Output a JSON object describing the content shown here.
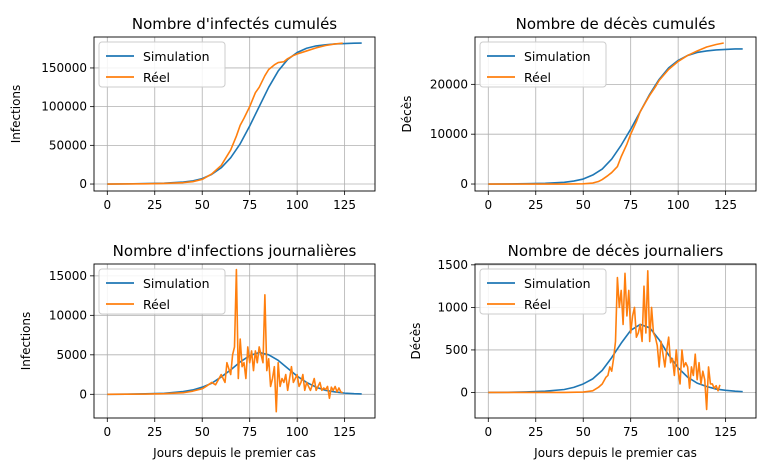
{
  "chart_data": [
    {
      "type": "line",
      "title": "Nombre d'infectés cumulés",
      "xlabel": "",
      "ylabel": "Infections",
      "xlim": [
        -7,
        141
      ],
      "ylim": [
        -9000,
        190000
      ],
      "xticks": [
        0,
        25,
        50,
        75,
        100,
        125
      ],
      "yticks": [
        0,
        50000,
        100000,
        150000
      ],
      "ytick_labels": [
        "0",
        "50000",
        "100000",
        "150000"
      ],
      "grid": true,
      "legend": "upper-left",
      "series": [
        {
          "name": "Simulation",
          "color": "#1f77b4",
          "x": [
            0,
            10,
            20,
            30,
            40,
            45,
            50,
            55,
            60,
            65,
            70,
            75,
            80,
            85,
            90,
            95,
            100,
            105,
            110,
            115,
            120,
            125,
            130,
            134
          ],
          "y": [
            0,
            200,
            600,
            1100,
            2500,
            4000,
            7000,
            12500,
            21000,
            34000,
            52000,
            75000,
            100000,
            125000,
            146000,
            161000,
            170000,
            175500,
            178500,
            180000,
            181000,
            181500,
            182000,
            182200
          ]
        },
        {
          "name": "Réel",
          "color": "#ff7f0e",
          "x": [
            0,
            10,
            20,
            30,
            40,
            45,
            50,
            55,
            60,
            65,
            68,
            70,
            72,
            75,
            78,
            80,
            83,
            85,
            88,
            90,
            93,
            95,
            98,
            100,
            105,
            110,
            115,
            120,
            124
          ],
          "y": [
            0,
            100,
            300,
            800,
            1800,
            3000,
            6000,
            13000,
            24000,
            44000,
            62000,
            76000,
            85000,
            100000,
            118000,
            125000,
            140000,
            148000,
            154000,
            157000,
            158000,
            162000,
            166000,
            168000,
            172000,
            176000,
            179000,
            181000,
            182000
          ]
        }
      ]
    },
    {
      "type": "line",
      "title": "Nombre de décès cumulés",
      "xlabel": "",
      "ylabel": "Décès",
      "xlim": [
        -7,
        141
      ],
      "ylim": [
        -1400,
        29500
      ],
      "xticks": [
        0,
        25,
        50,
        75,
        100,
        125
      ],
      "yticks": [
        0,
        10000,
        20000
      ],
      "ytick_labels": [
        "0",
        "10000",
        "20000"
      ],
      "grid": true,
      "legend": "upper-left",
      "series": [
        {
          "name": "Simulation",
          "color": "#1f77b4",
          "x": [
            0,
            10,
            20,
            30,
            40,
            45,
            50,
            55,
            60,
            65,
            70,
            75,
            80,
            85,
            90,
            95,
            100,
            105,
            110,
            115,
            120,
            125,
            130,
            134
          ],
          "y": [
            0,
            20,
            60,
            150,
            350,
            600,
            1000,
            1800,
            3000,
            5000,
            7800,
            11000,
            14500,
            18000,
            21000,
            23300,
            24800,
            25800,
            26400,
            26700,
            26900,
            27000,
            27100,
            27100
          ]
        },
        {
          "name": "Réel",
          "color": "#ff7f0e",
          "x": [
            0,
            10,
            20,
            30,
            40,
            50,
            55,
            58,
            60,
            63,
            65,
            68,
            70,
            73,
            75,
            78,
            80,
            83,
            85,
            88,
            90,
            95,
            100,
            105,
            110,
            115,
            120,
            124
          ],
          "y": [
            0,
            0,
            0,
            0,
            0,
            50,
            200,
            500,
            900,
            1700,
            2300,
            3500,
            5500,
            8000,
            10000,
            12500,
            14500,
            16500,
            17800,
            19500,
            20800,
            23000,
            24600,
            25800,
            26700,
            27500,
            28000,
            28300
          ]
        }
      ]
    },
    {
      "type": "line",
      "title": "Nombre d'infections journalières",
      "xlabel": "Jours depuis le premier cas",
      "ylabel": "Infections",
      "xlim": [
        -7,
        141
      ],
      "ylim": [
        -3000,
        16500
      ],
      "xticks": [
        0,
        25,
        50,
        75,
        100,
        125
      ],
      "yticks": [
        0,
        5000,
        10000,
        15000
      ],
      "ytick_labels": [
        "0",
        "5000",
        "10000",
        "15000"
      ],
      "grid": true,
      "legend": "upper-left",
      "series": [
        {
          "name": "Simulation",
          "color": "#1f77b4",
          "x": [
            0,
            10,
            20,
            30,
            40,
            45,
            50,
            55,
            60,
            65,
            70,
            75,
            80,
            85,
            90,
            95,
            100,
            105,
            110,
            115,
            120,
            125,
            130,
            134
          ],
          "y": [
            0,
            20,
            60,
            130,
            350,
            550,
            900,
            1400,
            2200,
            3100,
            4100,
            4900,
            5300,
            5000,
            4300,
            3300,
            2300,
            1500,
            900,
            500,
            300,
            150,
            80,
            50
          ]
        },
        {
          "name": "Réel",
          "color": "#ff7f0e",
          "x": [
            0,
            10,
            20,
            30,
            40,
            45,
            50,
            52,
            55,
            57,
            60,
            62,
            63,
            65,
            66,
            67,
            68,
            69,
            70,
            71,
            72,
            73,
            74,
            75,
            76,
            77,
            78,
            79,
            80,
            81,
            82,
            83,
            84,
            85,
            86,
            87,
            88,
            89,
            90,
            91,
            92,
            93,
            94,
            95,
            96,
            97,
            98,
            99,
            100,
            101,
            102,
            103,
            104,
            105,
            106,
            107,
            108,
            109,
            110,
            111,
            112,
            113,
            114,
            115,
            116,
            117,
            118,
            119,
            120,
            121,
            122,
            123,
            124
          ],
          "y": [
            0,
            10,
            30,
            80,
            200,
            400,
            700,
            1000,
            1500,
            1200,
            2500,
            1500,
            4000,
            2500,
            5000,
            6000,
            15800,
            2000,
            7000,
            3500,
            4000,
            2000,
            6000,
            4000,
            5500,
            3000,
            5500,
            4000,
            6000,
            5000,
            4000,
            12600,
            3000,
            4500,
            1000,
            2000,
            3500,
            -2200,
            4000,
            1000,
            2000,
            1500,
            2500,
            500,
            2000,
            3500,
            1500,
            2000,
            2500,
            1000,
            1500,
            2500,
            500,
            1500,
            1000,
            500,
            1200,
            2000,
            500,
            1000,
            1500,
            500,
            800,
            600,
            1000,
            -500,
            900,
            500,
            1000,
            300,
            800,
            300,
            200
          ]
        }
      ]
    },
    {
      "type": "line",
      "title": "Nombre de décès journaliers",
      "xlabel": "Jours depuis le premier cas",
      "ylabel": "Décès",
      "xlim": [
        -7,
        141
      ],
      "ylim": [
        -300,
        1510
      ],
      "xticks": [
        0,
        25,
        50,
        75,
        100,
        125
      ],
      "yticks": [
        0,
        500,
        1000,
        1500
      ],
      "ytick_labels": [
        "0",
        "500",
        "1000",
        "1500"
      ],
      "grid": true,
      "legend": "upper-left",
      "series": [
        {
          "name": "Simulation",
          "color": "#1f77b4",
          "x": [
            0,
            10,
            20,
            30,
            40,
            45,
            50,
            55,
            60,
            65,
            70,
            75,
            80,
            85,
            90,
            95,
            100,
            105,
            110,
            115,
            120,
            125,
            130,
            134
          ],
          "y": [
            0,
            2,
            6,
            15,
            35,
            60,
            100,
            160,
            260,
            410,
            580,
            730,
            800,
            760,
            620,
            440,
            290,
            180,
            110,
            70,
            40,
            25,
            15,
            10
          ]
        },
        {
          "name": "Réel",
          "color": "#ff7f0e",
          "x": [
            0,
            10,
            20,
            30,
            40,
            50,
            55,
            58,
            60,
            62,
            63,
            64,
            65,
            66,
            67,
            68,
            69,
            70,
            71,
            72,
            73,
            74,
            75,
            76,
            77,
            78,
            79,
            80,
            81,
            82,
            83,
            84,
            85,
            86,
            87,
            88,
            89,
            90,
            91,
            92,
            93,
            94,
            95,
            96,
            97,
            98,
            99,
            100,
            101,
            102,
            103,
            104,
            105,
            106,
            107,
            108,
            109,
            110,
            111,
            112,
            113,
            114,
            115,
            116,
            117,
            118,
            119,
            120,
            121,
            122
          ],
          "y": [
            0,
            0,
            0,
            0,
            0,
            5,
            20,
            60,
            100,
            180,
            200,
            300,
            250,
            400,
            600,
            1350,
            1000,
            1200,
            800,
            1400,
            900,
            1200,
            700,
            900,
            1000,
            650,
            700,
            800,
            600,
            1250,
            700,
            1430,
            600,
            1000,
            700,
            650,
            550,
            300,
            600,
            450,
            300,
            500,
            650,
            350,
            400,
            200,
            500,
            250,
            100,
            500,
            300,
            350,
            300,
            50,
            300,
            200,
            450,
            150,
            350,
            100,
            250,
            150,
            -200,
            300,
            100,
            100,
            50,
            80,
            20,
            90
          ]
        }
      ]
    }
  ]
}
